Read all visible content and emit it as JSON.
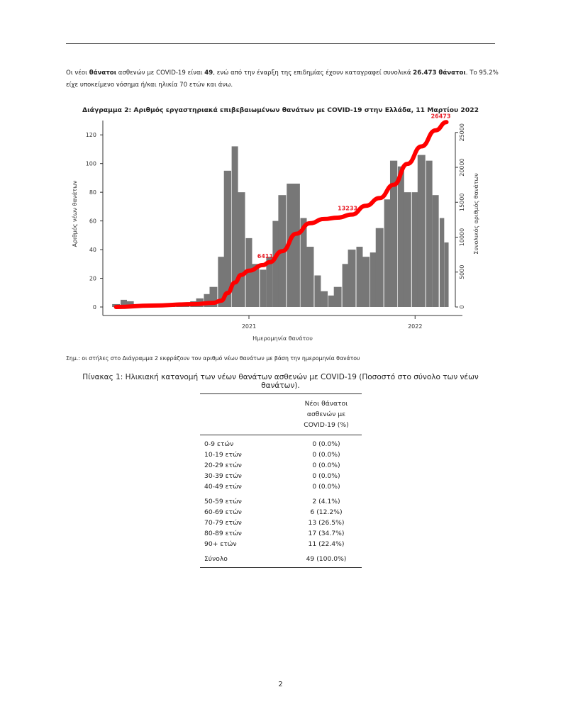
{
  "intro": {
    "p1": "Οι νέοι ",
    "b1": "θάνατοι",
    "p2": " ασθενών με COVID-19 είναι ",
    "b2": "49",
    "p3": ", ενώ από την έναρξη της επιδημίας έχουν καταγραφεί συνολικά ",
    "b3": "26.473 θάνατοι",
    "p4": ".  Το 95.2% είχε υποκείμενο νόσημα ή/και ηλικία 70 ετών και άνω."
  },
  "chart_data": {
    "type": "bar",
    "title": "Διάγραμμα 2: Αριθμός εργαστηριακά επιβεβαιωμένων θανάτων με COVID-19 στην Ελλάδα, 11 Μαρτίου 2022",
    "xlabel": "Ημερομηνία θανάτου",
    "ylabel": "Αριθμός νέων θανάτων",
    "y2label": "Συνολικός αριθμός θανάτων",
    "xticks": [
      "2021",
      "2022"
    ],
    "yticks": [
      "0",
      "20",
      "40",
      "60",
      "80",
      "100",
      "120"
    ],
    "y2ticks": [
      "0",
      "5000",
      "10000",
      "15000",
      "20000",
      "25000"
    ],
    "ylim": [
      0,
      130
    ],
    "y2lim": [
      0,
      27000
    ],
    "xlim": [
      "2020-02-15",
      "2022-04-15"
    ],
    "bar_color": "#777777",
    "line_color": "#ff0000",
    "label_color": "#e8202a",
    "bars": {
      "dates": [
        "2020-03-15",
        "2020-04-01",
        "2020-04-15",
        "2020-05-01",
        "2020-05-15",
        "2020-06-01",
        "2020-06-15",
        "2020-07-01",
        "2020-07-15",
        "2020-08-01",
        "2020-08-15",
        "2020-09-01",
        "2020-09-15",
        "2020-10-01",
        "2020-10-15",
        "2020-11-01",
        "2020-11-15",
        "2020-12-01",
        "2020-12-15",
        "2021-01-01",
        "2021-01-15",
        "2021-02-01",
        "2021-02-15",
        "2021-03-01",
        "2021-03-15",
        "2021-04-01",
        "2021-04-15",
        "2021-05-01",
        "2021-05-15",
        "2021-06-01",
        "2021-06-15",
        "2021-07-01",
        "2021-07-15",
        "2021-08-01",
        "2021-08-15",
        "2021-09-01",
        "2021-09-15",
        "2021-10-01",
        "2021-10-15",
        "2021-11-01",
        "2021-11-15",
        "2021-12-01",
        "2021-12-15",
        "2022-01-01",
        "2022-01-15",
        "2022-02-01",
        "2022-02-15",
        "2022-03-01",
        "2022-03-11"
      ],
      "values": [
        2,
        5,
        4,
        2,
        1,
        1,
        1,
        1,
        1,
        2,
        3,
        4,
        6,
        9,
        14,
        35,
        95,
        112,
        80,
        48,
        30,
        26,
        35,
        60,
        78,
        86,
        86,
        62,
        42,
        22,
        11,
        8,
        14,
        30,
        40,
        42,
        35,
        38,
        55,
        75,
        102,
        98,
        80,
        80,
        106,
        102,
        78,
        62,
        45
      ]
    },
    "cumulative": {
      "dates": [
        "2020-03-15",
        "2020-06-01",
        "2020-09-01",
        "2020-10-15",
        "2020-11-01",
        "2020-11-15",
        "2020-12-01",
        "2020-12-15",
        "2021-01-01",
        "2021-02-01",
        "2021-02-15",
        "2021-03-15",
        "2021-04-15",
        "2021-05-15",
        "2021-06-15",
        "2021-07-15",
        "2021-08-15",
        "2021-09-15",
        "2021-10-15",
        "2021-11-15",
        "2021-12-15",
        "2022-01-15",
        "2022-02-15",
        "2022-03-11"
      ],
      "values": [
        0,
        200,
        400,
        600,
        900,
        2000,
        3500,
        4600,
        5200,
        6000,
        6411,
        8000,
        10500,
        12000,
        12600,
        12800,
        13233,
        14500,
        15600,
        17500,
        20500,
        23000,
        25300,
        26473
      ]
    },
    "annotations": [
      {
        "date": "2021-02-15",
        "value": 6411,
        "text": "6411"
      },
      {
        "date": "2021-08-15",
        "value": 13233,
        "text": "13233"
      },
      {
        "date": "2022-03-11",
        "value": 26473,
        "text": "26473"
      }
    ]
  },
  "note": "Σημ.: οι στήλες στο Διάγραμμα 2 εκφράζουν τον αριθμό νέων θανάτων με βάση την ημερομηνία θανάτου",
  "table": {
    "caption": "Πίνακας 1: Ηλικιακή κατανομή των νέων θανάτων ασθενών με COVID-19 (Ποσοστό στο σύνολο των νέων θανάτων).",
    "header": [
      "Νέοι θάνατοι",
      "ασθενών με",
      "COVID-19 (%)"
    ],
    "rows": [
      {
        "label": "0-9 ετών",
        "value": "0 (0.0%)"
      },
      {
        "label": "10-19 ετών",
        "value": "0 (0.0%)"
      },
      {
        "label": "20-29 ετών",
        "value": "0 (0.0%)"
      },
      {
        "label": "30-39 ετών",
        "value": "0 (0.0%)"
      },
      {
        "label": "40-49 ετών",
        "value": "0 (0.0%)"
      },
      {
        "label": "50-59 ετών",
        "value": "2 (4.1%)"
      },
      {
        "label": "60-69 ετών",
        "value": "6 (12.2%)"
      },
      {
        "label": "70-79 ετών",
        "value": "13 (26.5%)"
      },
      {
        "label": "80-89 ετών",
        "value": "17 (34.7%)"
      },
      {
        "label": "90+ ετών",
        "value": "11 (22.4%)"
      },
      {
        "label": "Σύνολο",
        "value": "49 (100.0%)"
      }
    ]
  },
  "page_number": "2"
}
